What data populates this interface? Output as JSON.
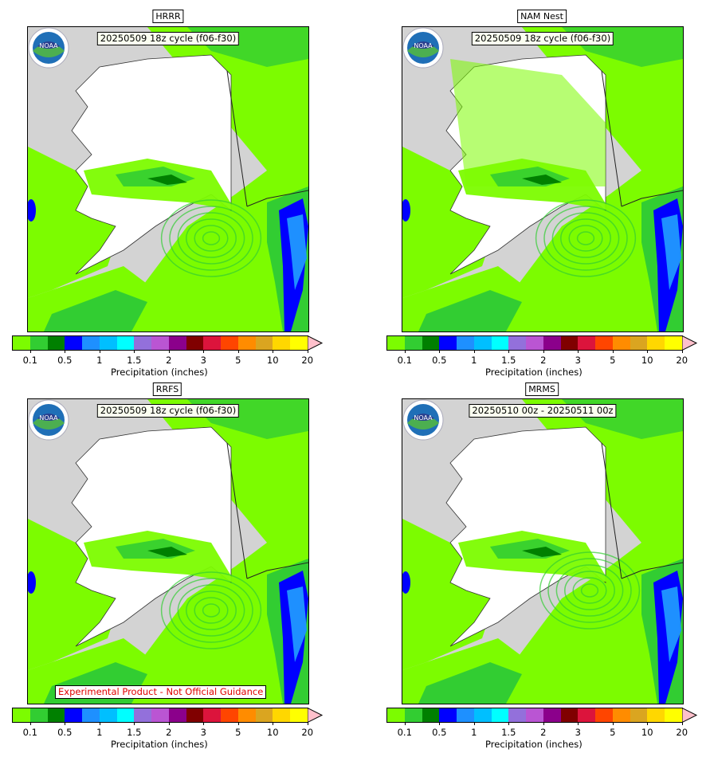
{
  "panels": [
    {
      "title": "HRRR",
      "cycle": "20250509 18z cycle (f06-f30)",
      "experimental": "",
      "variant": 0
    },
    {
      "title": "NAM Nest",
      "cycle": "20250509 18z cycle (f06-f30)",
      "experimental": "",
      "variant": 1
    },
    {
      "title": "RRFS",
      "cycle": "20250509 18z cycle (f06-f30)",
      "experimental": "Experimental Product - Not Official Guidance",
      "variant": 2
    },
    {
      "title": "MRMS",
      "cycle": "20250510 00z - 20250511 00z",
      "experimental": "",
      "variant": 3
    }
  ],
  "logo_text": "NOAA",
  "colorbar": {
    "label": "Precipitation (inches)",
    "ticks": [
      "0.1",
      "0.5",
      "1",
      "1.5",
      "2",
      "3",
      "5",
      "10",
      "20"
    ],
    "colors": [
      "#7cfc00",
      "#32cd32",
      "#008000",
      "#0000ff",
      "#1e90ff",
      "#00bfff",
      "#00ffff",
      "#9370db",
      "#ba55d3",
      "#8b008b",
      "#800000",
      "#dc143c",
      "#ff4500",
      "#ff8c00",
      "#daa520",
      "#ffd700",
      "#ffff00"
    ],
    "extend_color": "#ffc0cb"
  },
  "map_colors": {
    "land": "#d3d3d3",
    "dry": "#ffffff",
    "light": "#7cfc00",
    "medium": "#32cd32",
    "heavy": "#008000",
    "blue": "#0000ff",
    "cyan": "#1e90ff"
  }
}
